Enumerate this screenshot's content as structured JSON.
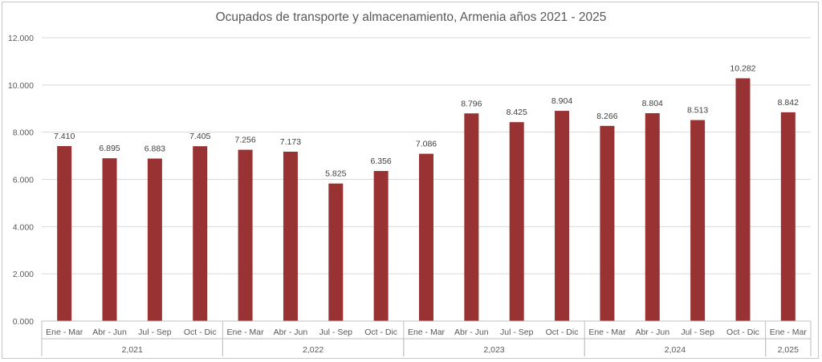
{
  "chart_data": {
    "type": "bar",
    "title": "Ocupados de transporte y almacenamiento, Armenia años 2021 - 2025",
    "xlabel": "",
    "ylabel": "",
    "ylim": [
      0,
      12000
    ],
    "yticks": [
      "0.000",
      "2.000",
      "4.000",
      "6.000",
      "8.000",
      "10.000",
      "12.000"
    ],
    "grid": true,
    "legend": "none",
    "bar_color": "#993333",
    "categories": [
      "Ene - Mar",
      "Abr - Jun",
      "Jul - Sep",
      "Oct - Dic",
      "Ene - Mar",
      "Abr - Jun",
      "Jul - Sep",
      "Oct - Dic",
      "Ene - Mar",
      "Abr - Jun",
      "Jul - Sep",
      "Oct - Dic",
      "Ene - Mar",
      "Abr - Jun",
      "Jul - Sep",
      "Oct - Dic",
      "Ene - Mar"
    ],
    "groups": [
      {
        "label": "2,021",
        "count": 4
      },
      {
        "label": "2,022",
        "count": 4
      },
      {
        "label": "2,023",
        "count": 4
      },
      {
        "label": "2,024",
        "count": 4
      },
      {
        "label": "2,025",
        "count": 1
      }
    ],
    "values": [
      7410,
      6895,
      6883,
      7405,
      7256,
      7173,
      5825,
      6356,
      7086,
      8796,
      8425,
      8904,
      8266,
      8804,
      8513,
      10282,
      8842
    ],
    "value_labels": [
      "7.410",
      "6.895",
      "6.883",
      "7.405",
      "7.256",
      "7.173",
      "5.825",
      "6.356",
      "7.086",
      "8.796",
      "8.425",
      "8.904",
      "8.266",
      "8.804",
      "8.513",
      "10.282",
      "8.842"
    ]
  }
}
